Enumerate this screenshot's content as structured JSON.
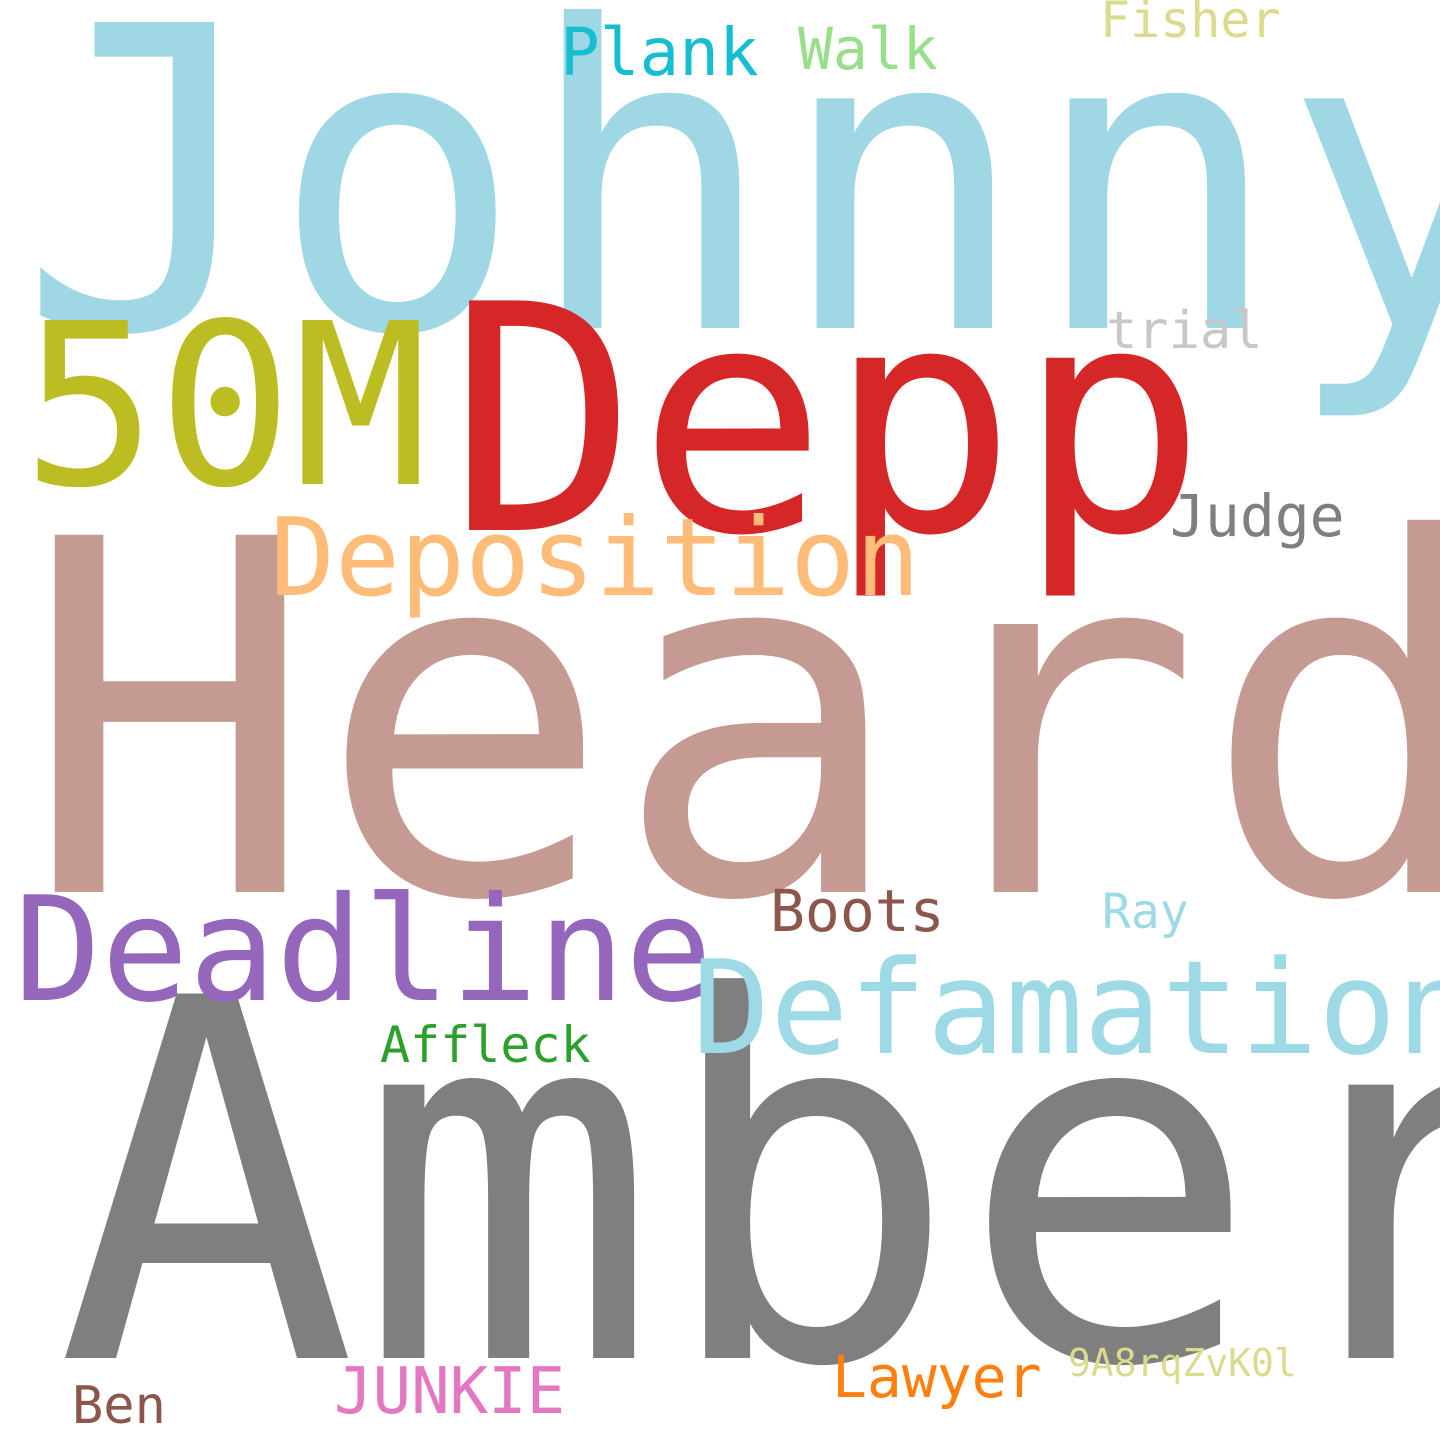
{
  "words": {
    "johnny": {
      "text": "Johnny",
      "color": "#9fd8e4"
    },
    "heard": {
      "text": "Heard",
      "color": "#c49a92"
    },
    "amber": {
      "text": "Amber",
      "color": "#7f7f7f"
    },
    "depp": {
      "text": "Depp",
      "color": "#d62728"
    },
    "fifty_m": {
      "text": "50M",
      "color": "#bcbd22"
    },
    "deposition": {
      "text": "Deposition",
      "color": "#ffbb78"
    },
    "deadline": {
      "text": "Deadline",
      "color": "#9467bd"
    },
    "defamation": {
      "text": "Defamation",
      "color": "#9edae5"
    },
    "plank": {
      "text": "Plank",
      "color": "#17becf"
    },
    "walk": {
      "text": "Walk",
      "color": "#98df8a"
    },
    "fisher": {
      "text": "Fisher",
      "color": "#dbdb8d"
    },
    "trial": {
      "text": "trial",
      "color": "#c7c7c7"
    },
    "judge": {
      "text": "Judge",
      "color": "#7f7f7f"
    },
    "boots": {
      "text": "Boots",
      "color": "#8c564b"
    },
    "ray": {
      "text": "Ray",
      "color": "#9edae5"
    },
    "affleck": {
      "text": "Affleck",
      "color": "#2ca02c"
    },
    "lawyer": {
      "text": "Lawyer",
      "color": "#ff7f0e"
    },
    "junkie": {
      "text": "JUNKIE",
      "color": "#e377c2"
    },
    "ben": {
      "text": "Ben",
      "color": "#8c564b"
    },
    "code": {
      "text": "9A8rqZvK0l",
      "color": "#dbdb8d"
    }
  }
}
